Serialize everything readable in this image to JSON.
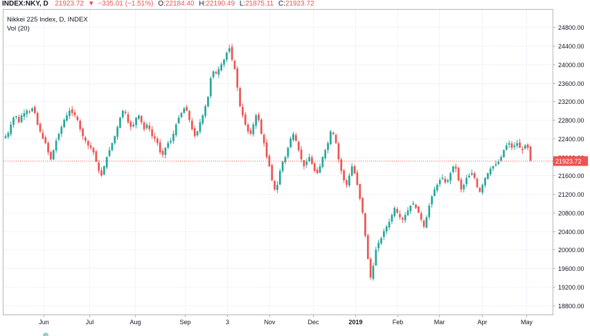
{
  "header": {
    "symbol": "INDEX:NKY, D",
    "last": "21923.72",
    "change_arrow": "▼",
    "change": "−335.01 (−1.51%)",
    "o_label": "O:",
    "o_value": "22184.40",
    "h_label": "H:",
    "h_value": "22190.49",
    "l_label": "L:",
    "l_value": "21875.11",
    "c_label": "C:",
    "c_value": "21923.72"
  },
  "legend": {
    "title": "Nikkei 225 Index, D, INDEX",
    "volume": "Vol (20)"
  },
  "colors": {
    "up": "#26a69a",
    "down": "#ef5350",
    "grid": "#f0f3fa",
    "axis": "#b2b5be",
    "text": "#131722"
  },
  "chart_data": {
    "type": "candlestick",
    "y_ticks": [
      "24800.00",
      "24400.00",
      "24000.00",
      "23600.00",
      "23200.00",
      "22800.00",
      "22400.00",
      "22000.00",
      "21600.00",
      "21200.00",
      "20800.00",
      "20400.00",
      "20000.00",
      "19600.00",
      "19200.00",
      "18800.00"
    ],
    "y_tick_values": [
      24800,
      24400,
      24000,
      23600,
      23200,
      22800,
      22400,
      22000,
      21600,
      21200,
      20800,
      20400,
      20000,
      19600,
      19200,
      18800
    ],
    "ylim": [
      18600,
      25180
    ],
    "x_ticks": [
      {
        "label": "Jun",
        "pos": 0.073
      },
      {
        "label": "Jul",
        "pos": 0.156
      },
      {
        "label": "Aug",
        "pos": 0.239
      },
      {
        "label": "Sep",
        "pos": 0.33
      },
      {
        "label": "3",
        "pos": 0.407
      },
      {
        "label": "Nov",
        "pos": 0.484
      },
      {
        "label": "Dec",
        "pos": 0.564
      },
      {
        "label": "2019",
        "pos": 0.64,
        "bold": true
      },
      {
        "label": "Feb",
        "pos": 0.718
      },
      {
        "label": "Mar",
        "pos": 0.793
      },
      {
        "label": "Apr",
        "pos": 0.872
      },
      {
        "label": "May",
        "pos": 0.952
      }
    ],
    "last_price": 21923.72,
    "last_price_label": "21923.72",
    "closes": [
      22450,
      22520,
      22700,
      22850,
      22880,
      22750,
      22900,
      22950,
      23000,
      22980,
      23050,
      22950,
      22700,
      22550,
      22400,
      22300,
      22100,
      21950,
      22150,
      22350,
      22500,
      22650,
      22800,
      22900,
      23000,
      22950,
      22900,
      22800,
      22600,
      22450,
      22350,
      22250,
      22200,
      22100,
      21900,
      21700,
      21600,
      21800,
      22000,
      22150,
      22300,
      22450,
      22650,
      22850,
      23000,
      22950,
      22750,
      22650,
      22700,
      22850,
      22900,
      22750,
      22600,
      22700,
      22600,
      22450,
      22400,
      22300,
      22100,
      22050,
      22200,
      22300,
      22350,
      22500,
      22700,
      22850,
      22950,
      23050,
      23000,
      22800,
      22600,
      22450,
      22550,
      22750,
      22900,
      23100,
      23300,
      23700,
      23850,
      23800,
      23900,
      24000,
      24100,
      24250,
      24350,
      24100,
      23900,
      23500,
      23100,
      22900,
      22700,
      22550,
      22500,
      22700,
      22900,
      22800,
      22500,
      22300,
      22000,
      21800,
      21500,
      21300,
      21400,
      21700,
      21900,
      22000,
      22200,
      22400,
      22500,
      22350,
      22150,
      21950,
      21800,
      21900,
      22000,
      21850,
      21700,
      21650,
      21800,
      22000,
      22150,
      22300,
      22550,
      22500,
      22300,
      21950,
      21700,
      21500,
      21400,
      21600,
      21800,
      21650,
      21400,
      21100,
      20800,
      20300,
      19800,
      19400,
      19650,
      20000,
      20150,
      20250,
      20400,
      20500,
      20600,
      20750,
      20900,
      20800,
      20700,
      20650,
      20750,
      20850,
      20950,
      21000,
      20900,
      20800,
      20650,
      20500,
      20700,
      20950,
      21150,
      21300,
      21400,
      21500,
      21550,
      21450,
      21500,
      21650,
      21800,
      21750,
      21500,
      21300,
      21400,
      21550,
      21600,
      21650,
      21550,
      21350,
      21250,
      21400,
      21550,
      21650,
      21750,
      21800,
      21850,
      21900,
      22000,
      22150,
      22250,
      22300,
      22200,
      22250,
      22300,
      22200,
      22150,
      22250,
      22200,
      21923.72
    ],
    "opens_shift": 0
  }
}
